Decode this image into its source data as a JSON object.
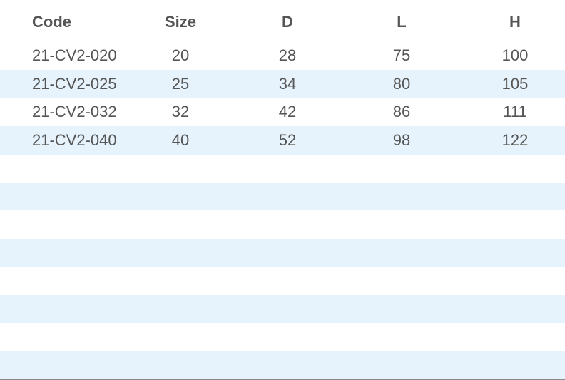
{
  "table": {
    "headers": [
      "Code",
      "Size",
      "D",
      "L",
      "H"
    ],
    "rows": [
      [
        "21-CV2-020",
        "20",
        "28",
        "75",
        "100"
      ],
      [
        "21-CV2-025",
        "25",
        "34",
        "80",
        "105"
      ],
      [
        "21-CV2-032",
        "32",
        "42",
        "86",
        "111"
      ],
      [
        "21-CV2-040",
        "40",
        "52",
        "98",
        "122"
      ]
    ]
  }
}
